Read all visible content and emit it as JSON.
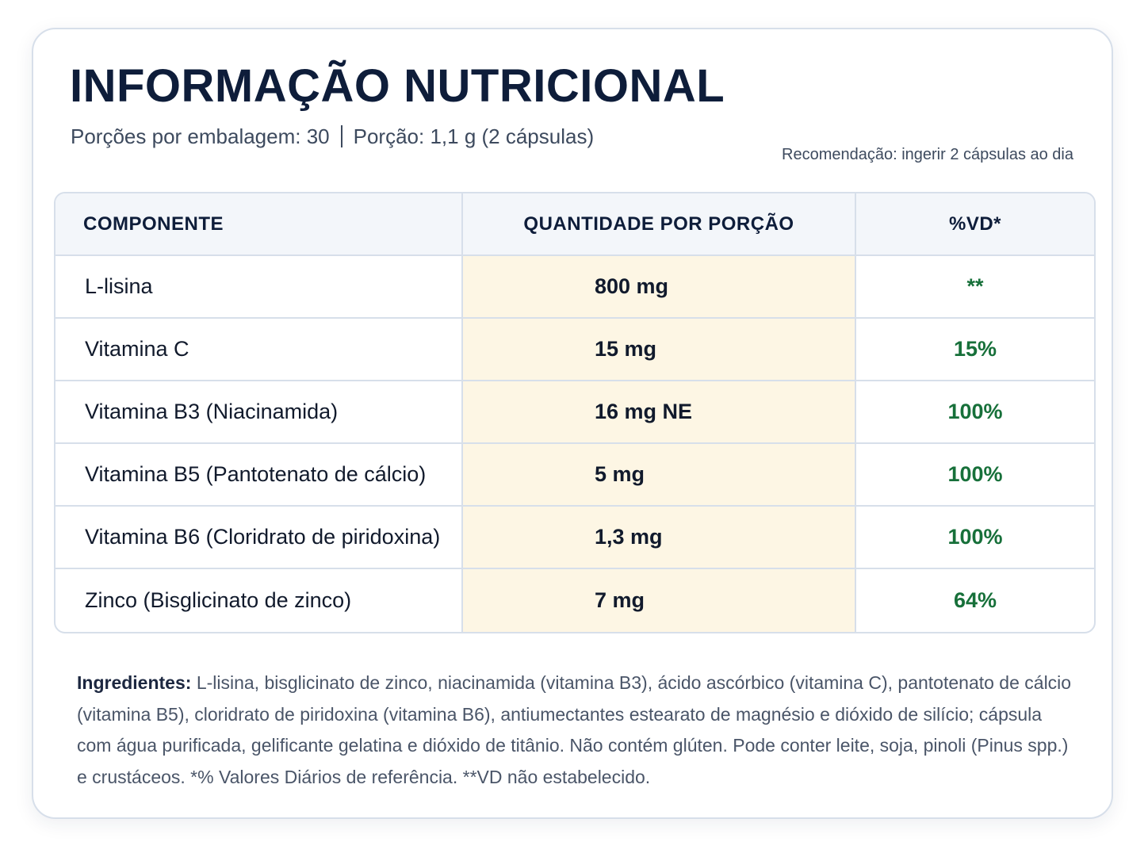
{
  "header": {
    "title": "INFORMAÇÃO NUTRICIONAL",
    "servings": "Porções por embalagem: 30",
    "portion": "Porção: 1,1 g (2 cápsulas)",
    "recommendation": "Recomendação: ingerir 2 cápsulas ao dia"
  },
  "table": {
    "columns": [
      "COMPONENTE",
      "QUANTIDADE POR PORÇÃO",
      "%VD*"
    ],
    "rows": [
      [
        "L-lisina",
        "800 mg",
        "**"
      ],
      [
        "Vitamina C",
        "15 mg",
        "15%"
      ],
      [
        "Vitamina B3 (Niacinamida)",
        "16 mg NE",
        "100%"
      ],
      [
        "Vitamina B5 (Pantotenato de cálcio)",
        "5 mg",
        "100%"
      ],
      [
        "Vitamina B6 (Cloridrato de piridoxina)",
        "1,3 mg",
        "100%"
      ],
      [
        "Zinco (Bisglicinato de zinco)",
        "7 mg",
        "64%"
      ]
    ]
  },
  "ingredients": {
    "label": "Ingredientes:",
    "text": "L-lisina, bisglicinato de zinco, niacinamida (vitamina B3), ácido ascórbico (vitamina C), pantotenato de cálcio (vitamina B5), cloridrato de piridoxina (vitamina B6), antiumectantes estearato de magnésio e dióxido de silício; cápsula com água purificada, gelificante gelatina e dióxido de titânio. Não contém glúten. Pode conter leite, soja, pinoli (Pinus spp.) e crustáceos. *% Valores Diários de referência. **VD não estabelecido."
  }
}
